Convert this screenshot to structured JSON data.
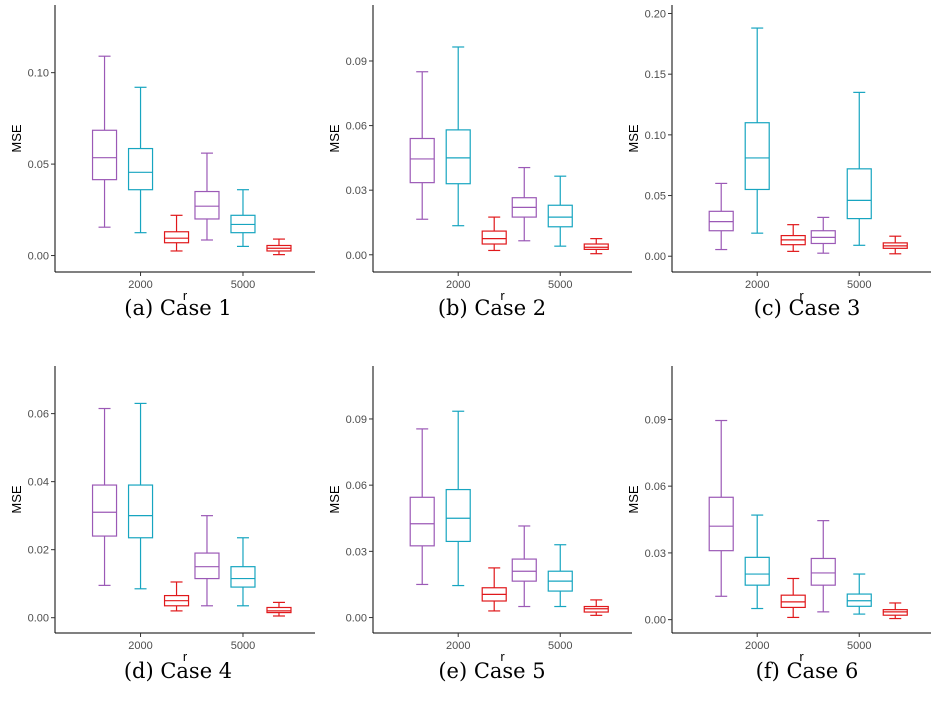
{
  "colors": {
    "series_1": "#9b59b6",
    "series_2": "#17a5c0",
    "series_3": "#e0181b",
    "axis": "#000000"
  },
  "chart_data": [
    {
      "type": "boxplot",
      "caption": "(a) Case 1",
      "xlabel": "r",
      "ylabel": "MSE",
      "categories": [
        "2000",
        "5000"
      ],
      "ylim": [
        -0.009,
        0.137
      ],
      "yticks": [
        {
          "value": 0.0,
          "label": "0.00"
        },
        {
          "value": 0.05,
          "label": "0.05"
        },
        {
          "value": 0.1,
          "label": "0.10"
        }
      ],
      "series": [
        {
          "color": "#9b59b6",
          "boxes": [
            {
              "min": 0.0155,
              "q1": 0.0415,
              "median": 0.0535,
              "q3": 0.0685,
              "max": 0.109
            },
            {
              "min": 0.0085,
              "q1": 0.02,
              "median": 0.027,
              "q3": 0.035,
              "max": 0.056
            }
          ]
        },
        {
          "color": "#17a5c0",
          "boxes": [
            {
              "min": 0.0125,
              "q1": 0.036,
              "median": 0.0455,
              "q3": 0.0585,
              "max": 0.092
            },
            {
              "min": 0.005,
              "q1": 0.0125,
              "median": 0.017,
              "q3": 0.022,
              "max": 0.036
            }
          ]
        },
        {
          "color": "#e0181b",
          "boxes": [
            {
              "min": 0.0025,
              "q1": 0.007,
              "median": 0.0095,
              "q3": 0.013,
              "max": 0.022
            },
            {
              "min": 0.0005,
              "q1": 0.0025,
              "median": 0.004,
              "q3": 0.0055,
              "max": 0.009
            }
          ]
        }
      ]
    },
    {
      "type": "boxplot",
      "caption": "(b) Case 2",
      "xlabel": "r",
      "ylabel": "MSE",
      "categories": [
        "2000",
        "5000"
      ],
      "ylim": [
        -0.008,
        0.116
      ],
      "yticks": [
        {
          "value": 0.0,
          "label": "0.00"
        },
        {
          "value": 0.03,
          "label": "0.03"
        },
        {
          "value": 0.06,
          "label": "0.06"
        },
        {
          "value": 0.09,
          "label": "0.09"
        }
      ],
      "series": [
        {
          "color": "#9b59b6",
          "boxes": [
            {
              "min": 0.0165,
              "q1": 0.0335,
              "median": 0.0445,
              "q3": 0.054,
              "max": 0.085
            },
            {
              "min": 0.0065,
              "q1": 0.0175,
              "median": 0.022,
              "q3": 0.0265,
              "max": 0.0405
            }
          ]
        },
        {
          "color": "#17a5c0",
          "boxes": [
            {
              "min": 0.0135,
              "q1": 0.033,
              "median": 0.045,
              "q3": 0.058,
              "max": 0.0965
            },
            {
              "min": 0.004,
              "q1": 0.013,
              "median": 0.0175,
              "q3": 0.023,
              "max": 0.0365
            }
          ]
        },
        {
          "color": "#e0181b",
          "boxes": [
            {
              "min": 0.002,
              "q1": 0.005,
              "median": 0.0075,
              "q3": 0.011,
              "max": 0.0175
            },
            {
              "min": 0.0005,
              "q1": 0.0025,
              "median": 0.0035,
              "q3": 0.005,
              "max": 0.0075
            }
          ]
        }
      ]
    },
    {
      "type": "boxplot",
      "caption": "(c) Case 3",
      "xlabel": "r",
      "ylabel": "MSE",
      "categories": [
        "2000",
        "5000"
      ],
      "ylim": [
        -0.013,
        0.207
      ],
      "yticks": [
        {
          "value": 0.0,
          "label": "0.00"
        },
        {
          "value": 0.05,
          "label": "0.05"
        },
        {
          "value": 0.1,
          "label": "0.10"
        },
        {
          "value": 0.15,
          "label": "0.15"
        },
        {
          "value": 0.2,
          "label": "0.20"
        }
      ],
      "series": [
        {
          "color": "#9b59b6",
          "boxes": [
            {
              "min": 0.0055,
              "q1": 0.021,
              "median": 0.0285,
              "q3": 0.037,
              "max": 0.06
            },
            {
              "min": 0.0025,
              "q1": 0.0105,
              "median": 0.0155,
              "q3": 0.021,
              "max": 0.032
            }
          ]
        },
        {
          "color": "#17a5c0",
          "boxes": [
            {
              "min": 0.019,
              "q1": 0.055,
              "median": 0.081,
              "q3": 0.11,
              "max": 0.188
            },
            {
              "min": 0.009,
              "q1": 0.031,
              "median": 0.046,
              "q3": 0.072,
              "max": 0.135
            }
          ]
        },
        {
          "color": "#e0181b",
          "boxes": [
            {
              "min": 0.004,
              "q1": 0.0095,
              "median": 0.0135,
              "q3": 0.017,
              "max": 0.026
            },
            {
              "min": 0.002,
              "q1": 0.0065,
              "median": 0.0085,
              "q3": 0.011,
              "max": 0.0165
            }
          ]
        }
      ]
    },
    {
      "type": "boxplot",
      "caption": "(d) Case 4",
      "xlabel": "r",
      "ylabel": "MSE",
      "categories": [
        "2000",
        "5000"
      ],
      "ylim": [
        -0.0045,
        0.074
      ],
      "yticks": [
        {
          "value": 0.0,
          "label": "0.00"
        },
        {
          "value": 0.02,
          "label": "0.02"
        },
        {
          "value": 0.04,
          "label": "0.04"
        },
        {
          "value": 0.06,
          "label": "0.06"
        }
      ],
      "series": [
        {
          "color": "#9b59b6",
          "boxes": [
            {
              "min": 0.0095,
              "q1": 0.024,
              "median": 0.031,
              "q3": 0.039,
              "max": 0.0615
            },
            {
              "min": 0.0035,
              "q1": 0.0115,
              "median": 0.015,
              "q3": 0.019,
              "max": 0.03
            }
          ]
        },
        {
          "color": "#17a5c0",
          "boxes": [
            {
              "min": 0.0085,
              "q1": 0.0235,
              "median": 0.03,
              "q3": 0.039,
              "max": 0.063
            },
            {
              "min": 0.0035,
              "q1": 0.009,
              "median": 0.0115,
              "q3": 0.015,
              "max": 0.0235
            }
          ]
        },
        {
          "color": "#e0181b",
          "boxes": [
            {
              "min": 0.002,
              "q1": 0.0035,
              "median": 0.005,
              "q3": 0.0065,
              "max": 0.0105
            },
            {
              "min": 0.0005,
              "q1": 0.0015,
              "median": 0.002,
              "q3": 0.003,
              "max": 0.0045
            }
          ]
        }
      ]
    },
    {
      "type": "boxplot",
      "caption": "(e) Case 5",
      "xlabel": "r",
      "ylabel": "MSE",
      "categories": [
        "2000",
        "5000"
      ],
      "ylim": [
        -0.007,
        0.114
      ],
      "yticks": [
        {
          "value": 0.0,
          "label": "0.00"
        },
        {
          "value": 0.03,
          "label": "0.03"
        },
        {
          "value": 0.06,
          "label": "0.06"
        },
        {
          "value": 0.09,
          "label": "0.09"
        }
      ],
      "series": [
        {
          "color": "#9b59b6",
          "boxes": [
            {
              "min": 0.015,
              "q1": 0.0325,
              "median": 0.0425,
              "q3": 0.0545,
              "max": 0.0855
            },
            {
              "min": 0.005,
              "q1": 0.0165,
              "median": 0.021,
              "q3": 0.0265,
              "max": 0.0415
            }
          ]
        },
        {
          "color": "#17a5c0",
          "boxes": [
            {
              "min": 0.0145,
              "q1": 0.0345,
              "median": 0.045,
              "q3": 0.058,
              "max": 0.0935
            },
            {
              "min": 0.005,
              "q1": 0.012,
              "median": 0.0165,
              "q3": 0.021,
              "max": 0.033
            }
          ]
        },
        {
          "color": "#e0181b",
          "boxes": [
            {
              "min": 0.003,
              "q1": 0.0075,
              "median": 0.0105,
              "q3": 0.0135,
              "max": 0.0225
            },
            {
              "min": 0.001,
              "q1": 0.0025,
              "median": 0.004,
              "q3": 0.005,
              "max": 0.008
            }
          ]
        }
      ]
    },
    {
      "type": "boxplot",
      "caption": "(f) Case 6",
      "xlabel": "r",
      "ylabel": "MSE",
      "categories": [
        "2000",
        "5000"
      ],
      "ylim": [
        -0.006,
        0.114
      ],
      "yticks": [
        {
          "value": 0.0,
          "label": "0.00"
        },
        {
          "value": 0.03,
          "label": "0.03"
        },
        {
          "value": 0.06,
          "label": "0.06"
        },
        {
          "value": 0.09,
          "label": "0.09"
        }
      ],
      "series": [
        {
          "color": "#9b59b6",
          "boxes": [
            {
              "min": 0.0105,
              "q1": 0.031,
              "median": 0.042,
              "q3": 0.055,
              "max": 0.0895
            },
            {
              "min": 0.0035,
              "q1": 0.0155,
              "median": 0.021,
              "q3": 0.0275,
              "max": 0.0445
            }
          ]
        },
        {
          "color": "#17a5c0",
          "boxes": [
            {
              "min": 0.005,
              "q1": 0.0155,
              "median": 0.0205,
              "q3": 0.028,
              "max": 0.047
            },
            {
              "min": 0.0025,
              "q1": 0.006,
              "median": 0.0085,
              "q3": 0.0115,
              "max": 0.0205
            }
          ]
        },
        {
          "color": "#e0181b",
          "boxes": [
            {
              "min": 0.001,
              "q1": 0.0055,
              "median": 0.008,
              "q3": 0.011,
              "max": 0.0185
            },
            {
              "min": 0.0005,
              "q1": 0.002,
              "median": 0.0035,
              "q3": 0.0045,
              "max": 0.0075
            }
          ]
        }
      ]
    }
  ]
}
